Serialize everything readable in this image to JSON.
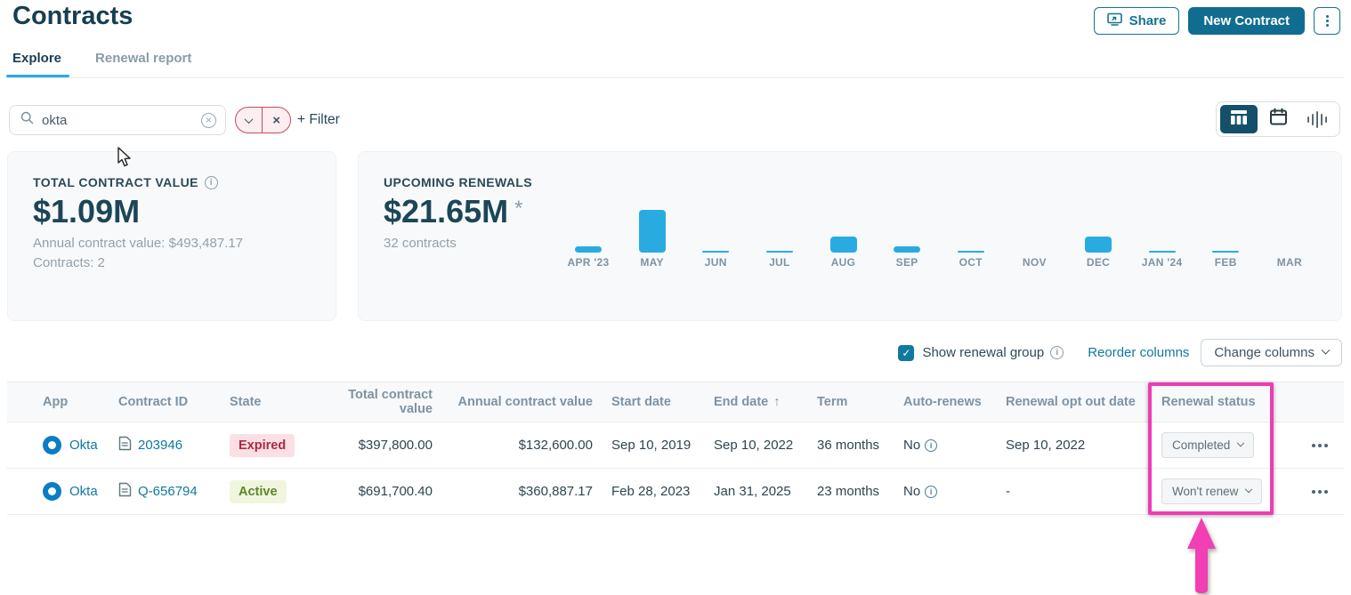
{
  "page": {
    "title": "Contracts"
  },
  "header": {
    "share_label": "Share",
    "new_contract_label": "New Contract"
  },
  "tabs": [
    {
      "label": "Explore",
      "active": true
    },
    {
      "label": "Renewal report",
      "active": false
    }
  ],
  "filter_bar": {
    "search_value": "okta",
    "search_placeholder": "Search",
    "add_filter_label": "+ Filter"
  },
  "cards": {
    "total": {
      "title": "TOTAL CONTRACT VALUE",
      "value": "$1.09M",
      "annual_label": "Annual contract value:",
      "annual_value": "$493,487.17",
      "contracts_label": "Contracts:",
      "contracts_value": "2"
    },
    "renewals": {
      "title": "UPCOMING RENEWALS",
      "value": "$21.65M",
      "asterisk": "*",
      "subtitle": "32 contracts"
    }
  },
  "chart_data": {
    "type": "bar",
    "title": "UPCOMING RENEWALS",
    "categories": [
      "APR '23",
      "MAY",
      "JUN",
      "JUL",
      "AUG",
      "SEP",
      "OCT",
      "NOV",
      "DEC",
      "JAN '24",
      "FEB",
      "MAR"
    ],
    "values": [
      7,
      48,
      2,
      2,
      18,
      7,
      2,
      0,
      18,
      2,
      2,
      0
    ],
    "unit": "relative-bar-height-px (no numeric axis shown)",
    "bar_color": "#29ABE2",
    "legend": false,
    "grid": false
  },
  "controls": {
    "show_renewal_group": "Show renewal group",
    "reorder_columns": "Reorder columns",
    "change_columns": "Change columns"
  },
  "table": {
    "columns": [
      {
        "label": "App",
        "class": "pl8"
      },
      {
        "label": "Contract ID",
        "class": ""
      },
      {
        "label": "State",
        "class": ""
      },
      {
        "label": "Total contract value",
        "class": "cell-right"
      },
      {
        "label": "Annual contract value",
        "class": "cell-right"
      },
      {
        "label": "Start date",
        "class": "pl9"
      },
      {
        "label": "End date",
        "class": "pl9",
        "sort": "asc"
      },
      {
        "label": "Term",
        "class": "pl15"
      },
      {
        "label": "Auto-renews",
        "class": "pl7"
      },
      {
        "label": "Renewal opt out date",
        "class": "pl7"
      },
      {
        "label": "Renewal status",
        "class": "pl7"
      },
      {
        "label": "",
        "class": ""
      }
    ],
    "rows": [
      {
        "app": "Okta",
        "contract_id": "203946",
        "state": "Expired",
        "state_type": "expired",
        "total_contract_value": "$397,800.00",
        "annual_contract_value": "$132,600.00",
        "start_date": "Sep 10, 2019",
        "end_date": "Sep 10, 2022",
        "term": "36 months",
        "auto_renews": "No",
        "renewal_opt_out_date": "Sep 10, 2022",
        "renewal_status": "Completed"
      },
      {
        "app": "Okta",
        "contract_id": "Q-656794",
        "state": "Active",
        "state_type": "active",
        "total_contract_value": "$691,700.40",
        "annual_contract_value": "$360,887.17",
        "start_date": "Feb 28, 2023",
        "end_date": "Jan 31, 2025",
        "term": "23 months",
        "auto_renews": "No",
        "renewal_opt_out_date": "-",
        "renewal_status": "Won't renew"
      }
    ]
  },
  "colors": {
    "accent_teal": "#116D90",
    "link_teal": "#1179A0",
    "chart_cyan": "#29ABE2",
    "annotation_magenta": "#EE3CB4",
    "expired_bg": "#FBDFE5",
    "expired_text": "#AA2B40",
    "active_bg": "#EFF6DD",
    "active_text": "#5C8727"
  }
}
